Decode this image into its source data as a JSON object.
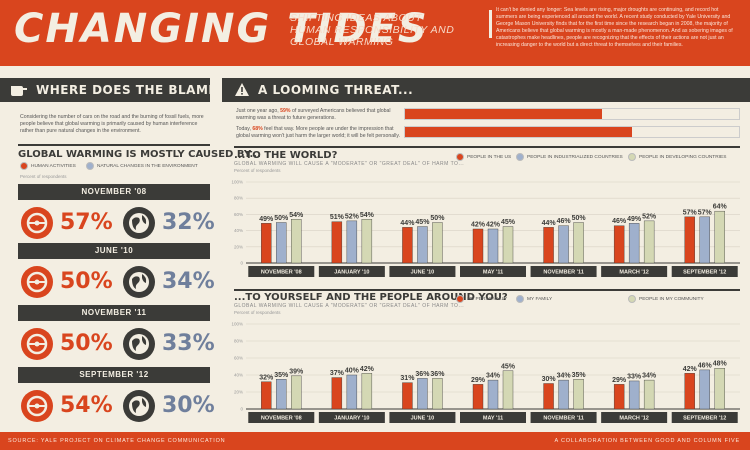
{
  "header": {
    "title": "CHANGING TIDES",
    "subtitle": "SHIFTING IDEAS ABOUT HUMAN RESPONSIBILITY AND GLOBAL WARMING",
    "intro": "It can't be denied any longer: Sea levels are rising, major droughts are continuing, and record hot summers are being experienced all around the world. A recent study conducted by Yale University and George Mason University finds that for the first time since the research began in 2008, the majority of Americans believe that global warming is mostly a man-made phenomenon. And as sobering images of catastrophes make headlines, people are recognizing that the effects of their actions are not just an increasing danger to the world but a direct threat to themselves and their families."
  },
  "blame": {
    "banner": "WHERE DOES THE BLAME LIE?",
    "text": "Considering the number of cars on the road and the burning of fossil fuels, more people believe that global warming is primarily caused by human interference rather than pure natural changes in the environment.",
    "heading": "GLOBAL WARMING IS MOSTLY CAUSED BY...",
    "legend_human": "HUMAN ACTIVITIES",
    "legend_natural": "NATURAL CHANGES IN THE ENVIRONMENT",
    "note": "Percent of respondents",
    "colors": {
      "human": "#d9451e",
      "natural": "#6f7f9c"
    },
    "periods": [
      {
        "date": "NOVEMBER '08",
        "human": "57%",
        "natural": "32%",
        "human_value": 57,
        "natural_value": 32
      },
      {
        "date": "JUNE '10",
        "human": "50%",
        "natural": "34%",
        "human_value": 50,
        "natural_value": 34
      },
      {
        "date": "NOVEMBER '11",
        "human": "50%",
        "natural": "33%",
        "human_value": 50,
        "natural_value": 33
      },
      {
        "date": "SEPTEMBER '12",
        "human": "54%",
        "natural": "30%",
        "human_value": 54,
        "natural_value": 30
      }
    ]
  },
  "threat": {
    "banner": "A LOOMING THREAT...",
    "rows": [
      {
        "text_pre": "Just one year ago, ",
        "text_pct": "59%",
        "text_post": " of surveyed Americans believed that global warming was a threat to future generations.",
        "value": 59
      },
      {
        "text_pre": "Today, ",
        "text_pct": "68%",
        "text_post": " feel that way. More people are under the impression that global warming won't just harm the larger world; it will be felt personally.",
        "value": 68
      }
    ]
  },
  "chart_data": [
    {
      "type": "bar",
      "title": "...TO THE WORLD?",
      "subtitle": "GLOBAL WARMING WILL CAUSE A \"MODERATE\" OR \"GREAT DEAL\" OF HARM TO...",
      "ylabel": "Percent of respondents",
      "ylim": [
        0,
        100
      ],
      "yticks": [
        "0",
        "20%",
        "40%",
        "60%",
        "80%",
        "100%"
      ],
      "categories": [
        "NOVEMBER '08",
        "JANUARY '10",
        "JUNE '10",
        "MAY '11",
        "NOVEMBER '11",
        "MARCH '12",
        "SEPTEMBER '12"
      ],
      "series": [
        {
          "name": "PEOPLE IN THE US",
          "color": "#d9451e",
          "values": [
            49,
            51,
            44,
            42,
            44,
            46,
            57
          ]
        },
        {
          "name": "PEOPLE IN INDUSTRIALIZED COUNTRIES",
          "color": "#9fb0cc",
          "values": [
            50,
            52,
            45,
            42,
            46,
            49,
            57
          ]
        },
        {
          "name": "PEOPLE IN DEVELOPING COUNTRIES",
          "color": "#d4d8b4",
          "values": [
            54,
            54,
            50,
            45,
            50,
            52,
            64
          ]
        }
      ]
    },
    {
      "type": "bar",
      "title": "...TO YOURSELF AND THE PEOPLE AROUND YOU?",
      "subtitle": "GLOBAL WARMING WILL CAUSE A \"MODERATE\" OR \"GREAT DEAL\" OF HARM TO...",
      "ylabel": "Percent of respondents",
      "ylim": [
        0,
        100
      ],
      "yticks": [
        "0",
        "20%",
        "40%",
        "60%",
        "80%",
        "100%"
      ],
      "categories": [
        "NOVEMBER '08",
        "JANUARY '10",
        "JUNE '10",
        "MAY '11",
        "NOVEMBER '11",
        "MARCH '12",
        "SEPTEMBER '12"
      ],
      "series": [
        {
          "name": "ME PERSONALLY",
          "color": "#d9451e",
          "values": [
            32,
            37,
            31,
            29,
            30,
            29,
            42
          ]
        },
        {
          "name": "MY FAMILY",
          "color": "#9fb0cc",
          "values": [
            35,
            40,
            36,
            34,
            34,
            33,
            46
          ]
        },
        {
          "name": "PEOPLE IN MY COMMUNITY",
          "color": "#d4d8b4",
          "values": [
            39,
            42,
            36,
            45,
            35,
            34,
            48
          ]
        }
      ]
    }
  ],
  "footer": {
    "source": "SOURCE: YALE PROJECT ON CLIMATE CHANGE COMMUNICATION",
    "credit": "A COLLABORATION BETWEEN GOOD AND COLUMN FIVE"
  }
}
